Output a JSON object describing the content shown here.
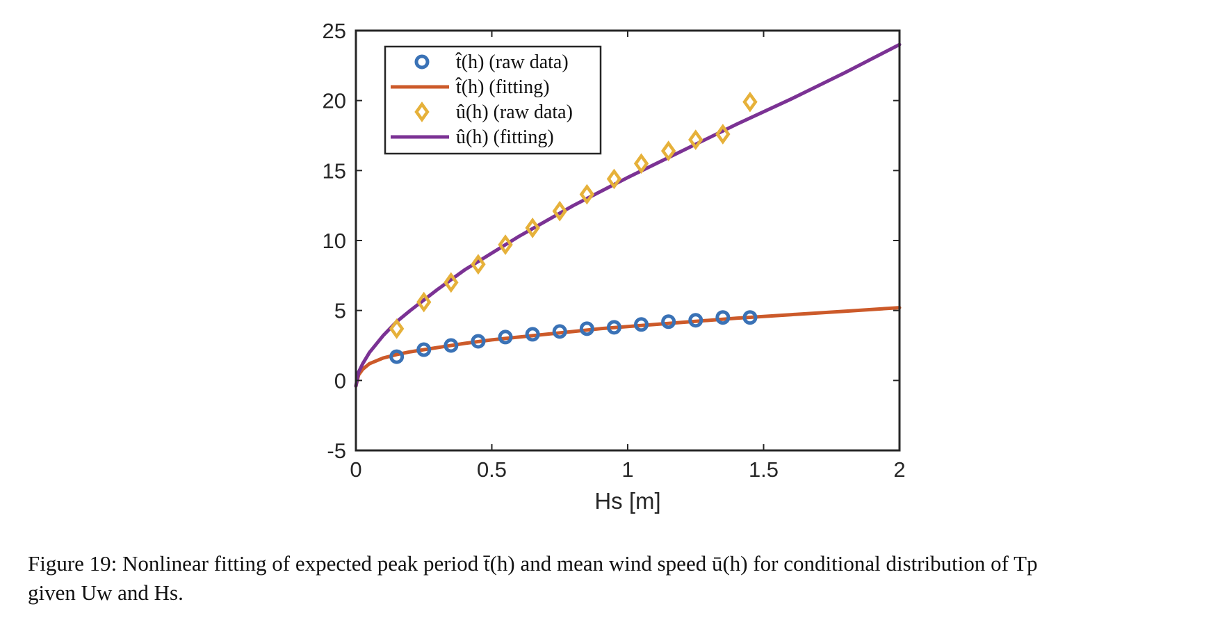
{
  "chart_data": {
    "type": "line",
    "xlabel": "Hs [m]",
    "ylabel": "",
    "xlim": [
      0,
      2
    ],
    "ylim": [
      -5,
      25
    ],
    "xticks": [
      "0",
      "0.5",
      "1",
      "1.5",
      "2"
    ],
    "yticks": [
      "-5",
      "0",
      "5",
      "10",
      "15",
      "20",
      "25"
    ],
    "grid": false,
    "legend_position": "top-left",
    "series": [
      {
        "name": "t̂(h) (raw data)",
        "kind": "scatter",
        "marker": "circle",
        "color": "#3a72b6",
        "x": [
          0.15,
          0.25,
          0.35,
          0.45,
          0.55,
          0.65,
          0.75,
          0.85,
          0.95,
          1.05,
          1.15,
          1.25,
          1.35,
          1.45
        ],
        "y": [
          1.7,
          2.2,
          2.5,
          2.8,
          3.1,
          3.3,
          3.5,
          3.7,
          3.8,
          4.0,
          4.2,
          4.3,
          4.5,
          4.5
        ]
      },
      {
        "name": "t̂(h) (fitting)",
        "kind": "line",
        "color": "#cc5a2a",
        "x": [
          0,
          0.01,
          0.025,
          0.05,
          0.1,
          0.15,
          0.2,
          0.3,
          0.4,
          0.5,
          0.6,
          0.7,
          0.8,
          0.9,
          1.0,
          1.2,
          1.4,
          1.6,
          1.8,
          2.0
        ],
        "y": [
          -0.4,
          0.4,
          0.8,
          1.2,
          1.6,
          1.85,
          2.05,
          2.35,
          2.65,
          2.9,
          3.1,
          3.3,
          3.5,
          3.7,
          3.85,
          4.15,
          4.45,
          4.7,
          4.95,
          5.2
        ]
      },
      {
        "name": "û(h) (raw data)",
        "kind": "scatter",
        "marker": "diamond",
        "color": "#e6b13a",
        "x": [
          0.15,
          0.25,
          0.35,
          0.45,
          0.55,
          0.65,
          0.75,
          0.85,
          0.95,
          1.05,
          1.15,
          1.25,
          1.35,
          1.45
        ],
        "y": [
          3.7,
          5.6,
          7.0,
          8.3,
          9.7,
          10.9,
          12.1,
          13.3,
          14.4,
          15.5,
          16.4,
          17.2,
          17.6,
          19.9
        ]
      },
      {
        "name": "û(h) (fitting)",
        "kind": "line",
        "color": "#7b3294",
        "x": [
          0,
          0.01,
          0.025,
          0.05,
          0.1,
          0.15,
          0.2,
          0.3,
          0.4,
          0.5,
          0.6,
          0.7,
          0.8,
          0.9,
          1.0,
          1.2,
          1.4,
          1.6,
          1.8,
          2.0
        ],
        "y": [
          -0.4,
          0.6,
          1.2,
          2.0,
          3.2,
          4.2,
          5.0,
          6.5,
          7.9,
          9.1,
          10.3,
          11.4,
          12.5,
          13.5,
          14.5,
          16.4,
          18.3,
          20.1,
          22.0,
          24.0
        ]
      }
    ]
  },
  "caption": {
    "line1": "Figure 19: Nonlinear fitting of expected peak period t̄(h) and mean wind speed ū(h) for conditional distribution of Tp",
    "line2": "given Uw and Hs."
  }
}
